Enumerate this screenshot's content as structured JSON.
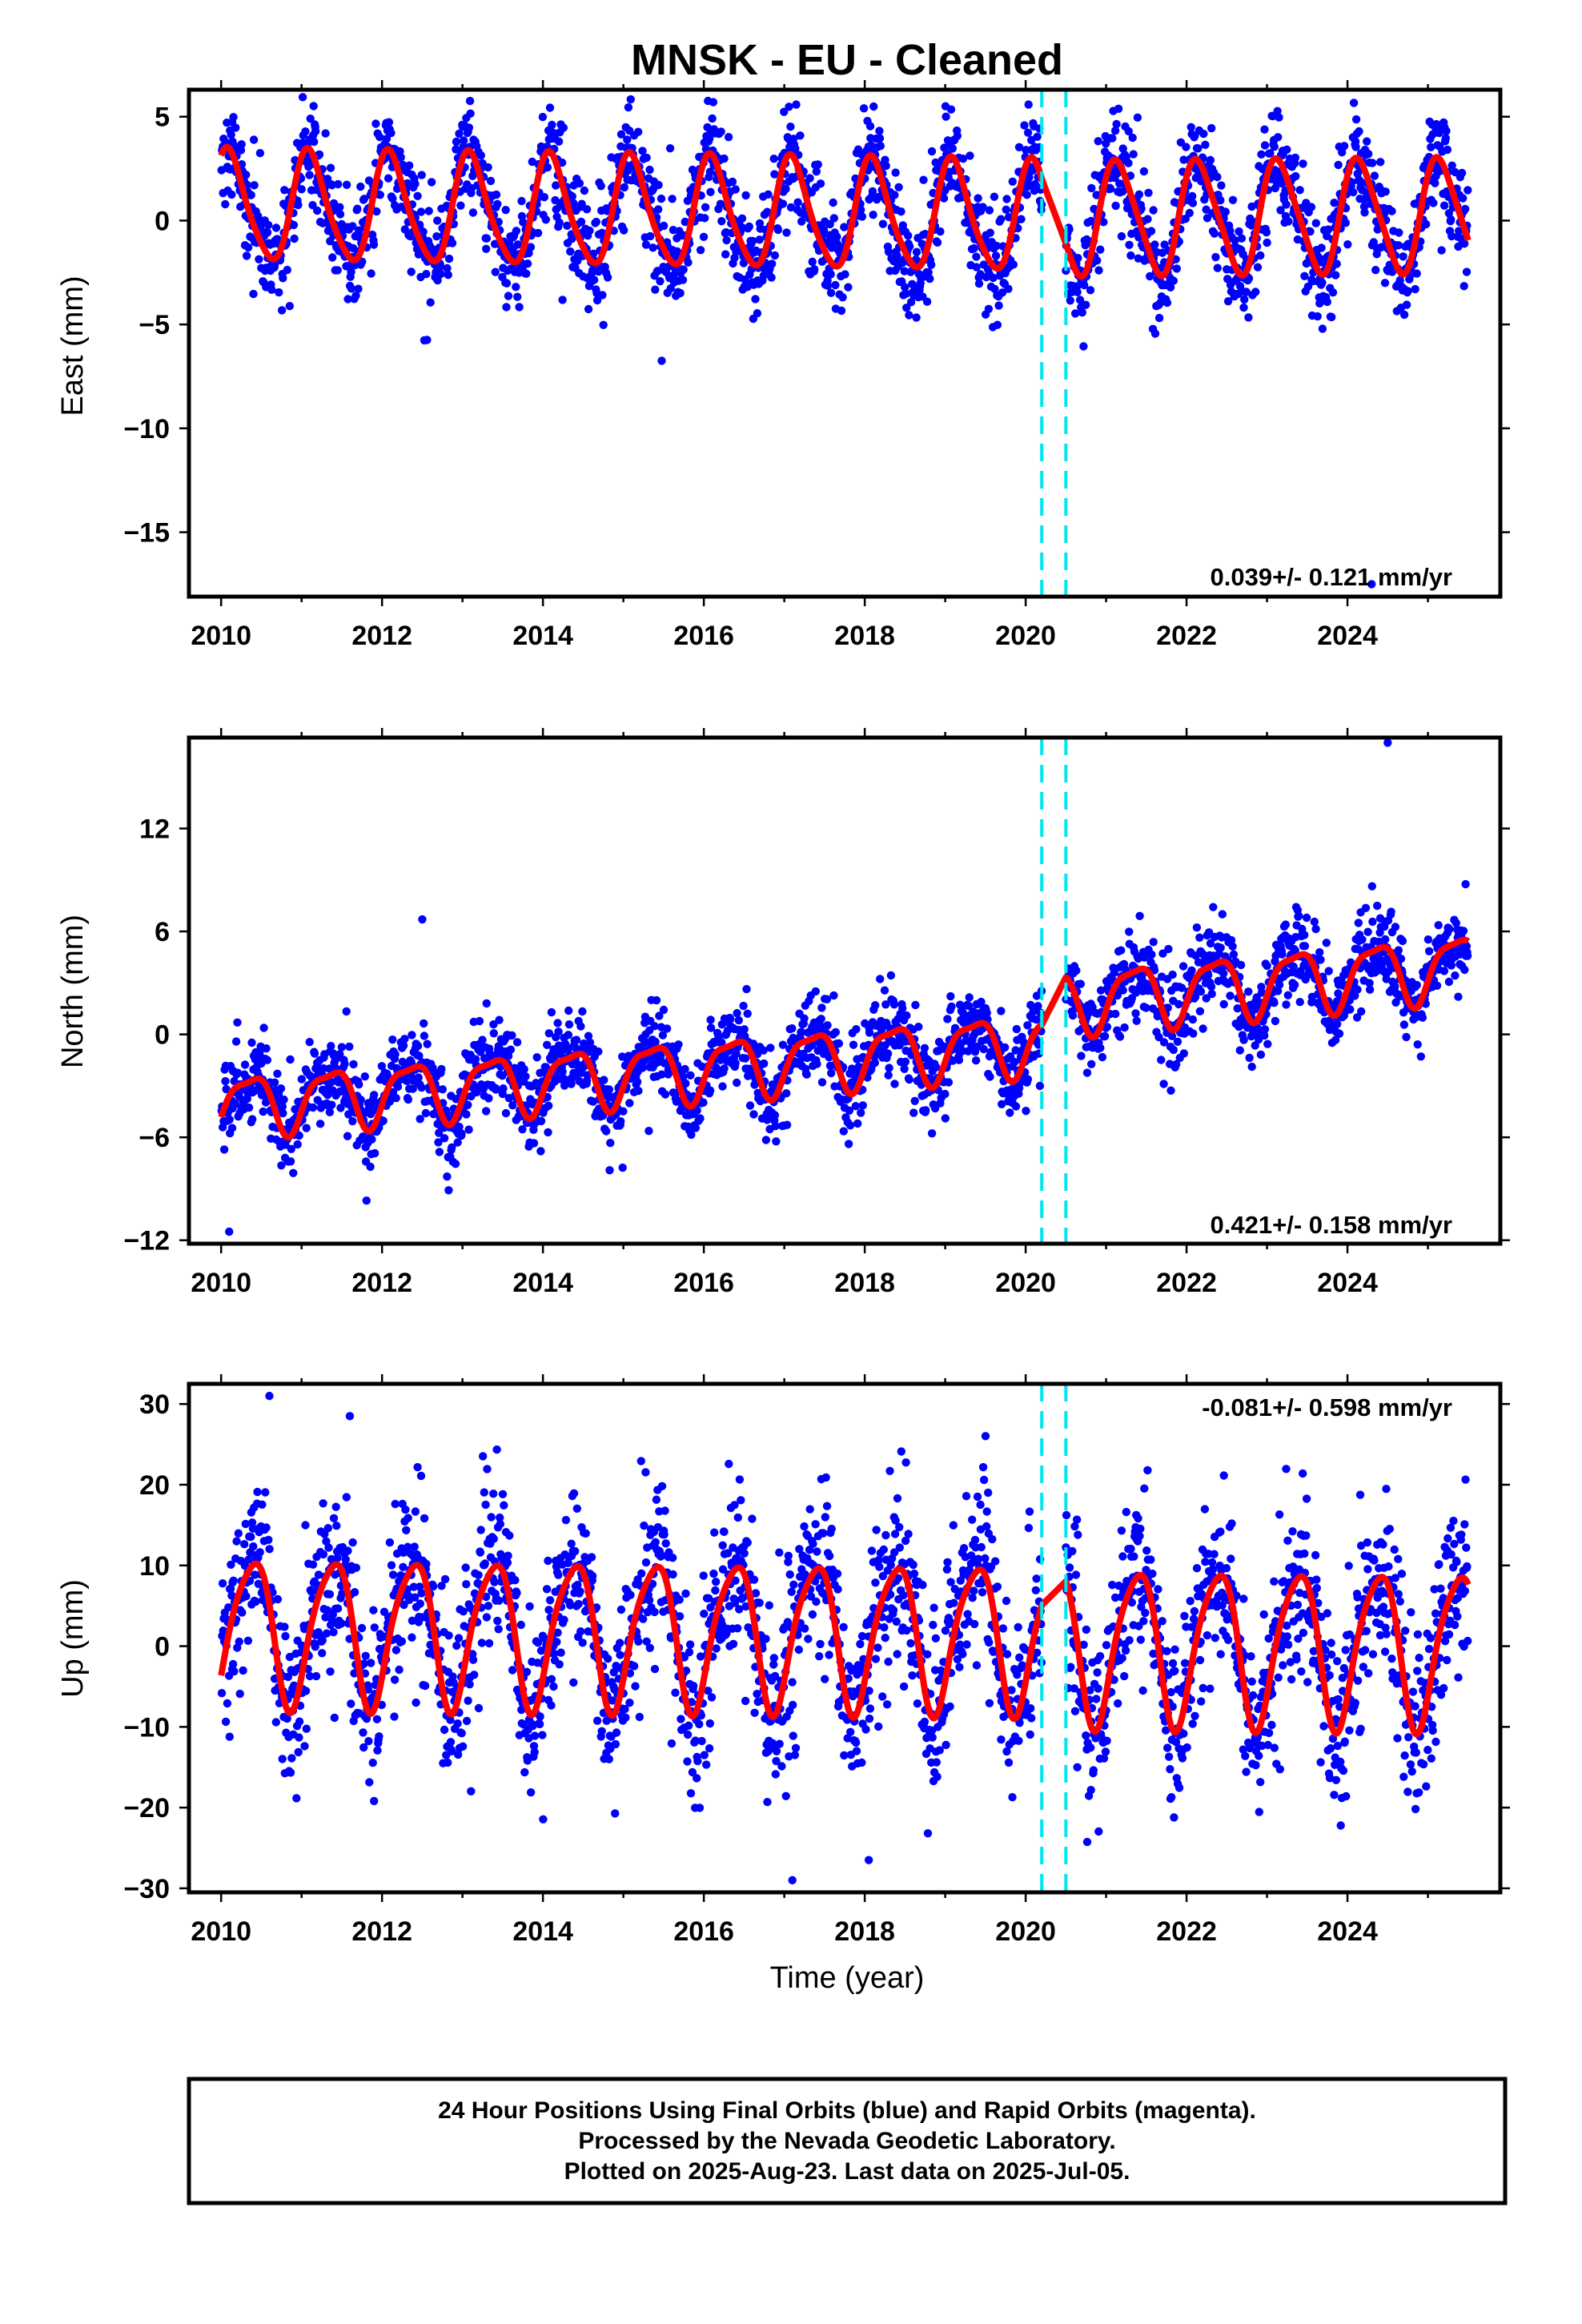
{
  "title": "MNSK  - EU - Cleaned",
  "xlabel": "Time (year)",
  "footer": {
    "line1": "24 Hour Positions Using Final Orbits (blue) and Rapid Orbits (magenta).",
    "line2": "Processed by the Nevada Geodetic Laboratory.",
    "line3": "Plotted on 2025-Aug-23. Last data on 2025-Jul-05."
  },
  "colors": {
    "points": "#0000ff",
    "fit": "#ff0000",
    "markers": "#00e5ee"
  },
  "chart_data": [
    {
      "type": "scatter",
      "name": "east",
      "ylabel": "East (mm)",
      "rate_text": "0.039+/- 0.121 mm/yr",
      "xlim": [
        2009.6,
        2025.9
      ],
      "ylim": [
        -18.1,
        6.3
      ],
      "xticks": [
        2010,
        2012,
        2014,
        2016,
        2018,
        2020,
        2022,
        2024
      ],
      "yticks": [
        -15,
        -10,
        -5,
        0,
        5
      ],
      "vlines": [
        2020.2,
        2020.5
      ],
      "fit": {
        "x_range": [
          2010.0,
          2025.5
        ],
        "gap": [
          2020.2,
          2020.5
        ],
        "segments": [
          {
            "x0": 2010.0,
            "x1": 2020.2,
            "offset": 0.3,
            "trend": -0.05,
            "amplitude": 2.6,
            "phase": 0.1,
            "semi_amplitude": 0.4,
            "semi_phase": 0.2
          },
          {
            "x0": 2020.5,
            "x1": 2025.5,
            "offset": 0.0,
            "trend": 0.03,
            "amplitude": 2.7,
            "phase": 0.15,
            "semi_amplitude": 0.4,
            "semi_phase": 0.2
          }
        ]
      },
      "scatter_model": {
        "noise_sd": 1.3,
        "count": 2400,
        "outliers": [
          [
            2024.3,
            -17.5
          ]
        ]
      }
    },
    {
      "type": "scatter",
      "name": "north",
      "ylabel": "North (mm)",
      "rate_text": "0.421+/- 0.158 mm/yr",
      "xlim": [
        2009.6,
        2025.9
      ],
      "ylim": [
        -12.2,
        17.3
      ],
      "xticks": [
        2010,
        2012,
        2014,
        2016,
        2018,
        2020,
        2022,
        2024
      ],
      "yticks": [
        -12,
        -6,
        0,
        6,
        12
      ],
      "vlines": [
        2020.2,
        2020.5
      ],
      "fit": {
        "x_range": [
          2010.0,
          2025.5
        ],
        "gap": [
          2020.2,
          2020.5
        ],
        "segments": [
          {
            "x0": 2010.0,
            "x1": 2020.2,
            "offset": -1.6,
            "trend": 0.36,
            "amplitude": 1.7,
            "phase": 0.35,
            "semi_amplitude": 0.5,
            "semi_phase": 0.1
          },
          {
            "x0": 2020.5,
            "x1": 2025.5,
            "offset": 0.5,
            "trend": 0.42,
            "amplitude": 1.8,
            "phase": 0.35,
            "semi_amplitude": 0.5,
            "semi_phase": 0.1
          }
        ]
      },
      "scatter_model": {
        "noise_sd": 1.2,
        "count": 2400,
        "outliers": [
          [
            2024.5,
            17.0
          ],
          [
            2010.1,
            -11.5
          ],
          [
            2012.5,
            6.7
          ]
        ]
      }
    },
    {
      "type": "scatter",
      "name": "up",
      "ylabel": "Up (mm)",
      "rate_text": "-0.081+/- 0.598 mm/yr",
      "xlim": [
        2009.6,
        2025.9
      ],
      "ylim": [
        -30.5,
        32.5
      ],
      "xticks": [
        2010,
        2012,
        2014,
        2016,
        2018,
        2020,
        2022,
        2024
      ],
      "yticks": [
        -30,
        -20,
        -10,
        0,
        10,
        20,
        30
      ],
      "vlines": [
        2020.2,
        2020.5
      ],
      "fit": {
        "x_range": [
          2010.0,
          2025.5
        ],
        "gap": [
          2020.2,
          2020.5
        ],
        "segments": [
          {
            "x0": 2010.0,
            "x1": 2020.2,
            "offset": 1.5,
            "trend": -0.08,
            "amplitude": 9.0,
            "phase": 0.38,
            "semi_amplitude": 1.5,
            "semi_phase": 0.1
          },
          {
            "x0": 2020.5,
            "x1": 2025.5,
            "offset": 0.5,
            "trend": -0.08,
            "amplitude": 9.5,
            "phase": 0.38,
            "semi_amplitude": 1.5,
            "semi_phase": 0.1
          }
        ]
      },
      "scatter_model": {
        "noise_sd": 5.2,
        "count": 2400,
        "outliers": [
          [
            2010.6,
            31.0
          ],
          [
            2017.1,
            -29.0
          ],
          [
            2018.05,
            -26.5
          ],
          [
            2011.6,
            28.5
          ]
        ]
      }
    }
  ]
}
